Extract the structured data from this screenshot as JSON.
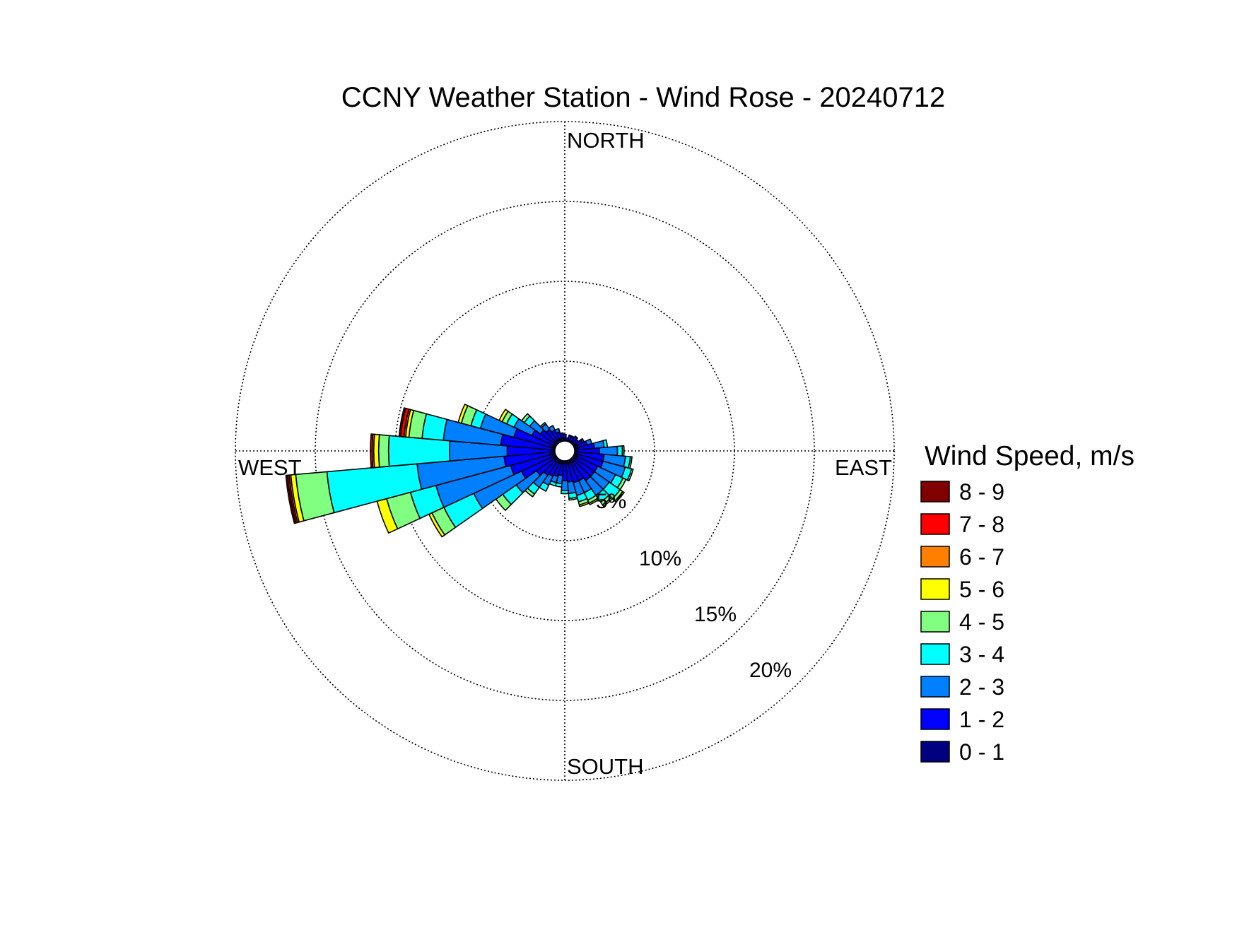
{
  "chart_data": {
    "type": "wind-rose",
    "title": "CCNY Weather Station - Wind Rose - 20240712",
    "direction_labels": {
      "north": "NORTH",
      "east": "EAST",
      "south": "SOUTH",
      "west": "WEST"
    },
    "ring_values": [
      5,
      10,
      15,
      20
    ],
    "ring_labels": [
      "5%",
      "10%",
      "15%",
      "20%"
    ],
    "rmax": 20,
    "legend_title": "Wind Speed, m/s",
    "bins": [
      {
        "label": "0 - 1",
        "color": "#000080"
      },
      {
        "label": "1 - 2",
        "color": "#0000FF"
      },
      {
        "label": "2 - 3",
        "color": "#0080FF"
      },
      {
        "label": "3 - 4",
        "color": "#00FFFF"
      },
      {
        "label": "4 - 5",
        "color": "#80FF80"
      },
      {
        "label": "5 - 6",
        "color": "#FFFF00"
      },
      {
        "label": "6 - 7",
        "color": "#FF8000"
      },
      {
        "label": "7 - 8",
        "color": "#FF0000"
      },
      {
        "label": "8 - 9",
        "color": "#800000"
      }
    ],
    "sector_width_deg": 10,
    "sectors": [
      {
        "dir": 0,
        "values": [
          0.8,
          0.2
        ]
      },
      {
        "dir": 10,
        "values": [
          0.6,
          0.2
        ]
      },
      {
        "dir": 20,
        "values": [
          0.7,
          0.3
        ]
      },
      {
        "dir": 30,
        "values": [
          0.7,
          0.3
        ]
      },
      {
        "dir": 40,
        "values": [
          0.7,
          0.4
        ]
      },
      {
        "dir": 50,
        "values": [
          0.7,
          0.3
        ]
      },
      {
        "dir": 60,
        "values": [
          0.8,
          0.4,
          0.1
        ]
      },
      {
        "dir": 70,
        "values": [
          0.8,
          0.6,
          0.3
        ]
      },
      {
        "dir": 80,
        "values": [
          0.8,
          1.0,
          0.6,
          0.2
        ]
      },
      {
        "dir": 90,
        "values": [
          0.8,
          1.3,
          1.1,
          0.3,
          0.1
        ]
      },
      {
        "dir": 100,
        "values": [
          0.8,
          1.6,
          1.3,
          0.3,
          0.1
        ]
      },
      {
        "dir": 110,
        "values": [
          0.8,
          1.6,
          1.4,
          0.4,
          0.1
        ]
      },
      {
        "dir": 120,
        "values": [
          0.8,
          1.4,
          1.2,
          0.5,
          0.2
        ]
      },
      {
        "dir": 130,
        "values": [
          0.8,
          1.4,
          1.1,
          0.8,
          0.2,
          0.1
        ]
      },
      {
        "dir": 140,
        "values": [
          0.8,
          1.4,
          1.1,
          0.5,
          0.2,
          0.1
        ]
      },
      {
        "dir": 150,
        "values": [
          0.8,
          1.2,
          0.8,
          0.5,
          0.2,
          0.1
        ]
      },
      {
        "dir": 160,
        "values": [
          0.8,
          1.2,
          0.8,
          0.4,
          0.2,
          0.1
        ]
      },
      {
        "dir": 170,
        "values": [
          0.8,
          1.1,
          0.7,
          0.3,
          0.1
        ]
      },
      {
        "dir": 180,
        "values": [
          0.8,
          1.0,
          0.6,
          0.2
        ]
      },
      {
        "dir": 190,
        "values": [
          0.8,
          0.7,
          0.5,
          0.2
        ]
      },
      {
        "dir": 200,
        "values": [
          0.8,
          0.8,
          0.4,
          0.2
        ]
      },
      {
        "dir": 210,
        "values": [
          0.8,
          0.9,
          0.6,
          0.4
        ]
      },
      {
        "dir": 220,
        "values": [
          0.8,
          1.0,
          0.9,
          0.5,
          0.2
        ]
      },
      {
        "dir": 230,
        "values": [
          0.8,
          1.3,
          1.5,
          1.0,
          0.5
        ]
      },
      {
        "dir": 240,
        "values": [
          0.8,
          2.1,
          3.2,
          2.0,
          0.8,
          0.2
        ]
      },
      {
        "dir": 250,
        "values": [
          0.8,
          2.6,
          4.7,
          1.6,
          1.5,
          0.6
        ]
      },
      {
        "dir": 260,
        "values": [
          0.8,
          2.9,
          5.3,
          5.5,
          1.9,
          0.3,
          0.1,
          0.1,
          0.1
        ]
      },
      {
        "dir": 270,
        "values": [
          0.8,
          2.7,
          3.5,
          3.7,
          0.6,
          0.3,
          0.1,
          0.1
        ]
      },
      {
        "dir": 280,
        "values": [
          0.8,
          3.1,
          3.5,
          1.3,
          0.8,
          0.2,
          0.1,
          0.2,
          0.1
        ]
      },
      {
        "dir": 290,
        "values": [
          0.8,
          2.4,
          2.1,
          0.6,
          0.6,
          0.2
        ]
      },
      {
        "dir": 300,
        "values": [
          0.8,
          1.4,
          1.2,
          0.5,
          0.3,
          0.2
        ]
      },
      {
        "dir": 310,
        "values": [
          0.8,
          1.0,
          0.8,
          0.4,
          0.2
        ]
      },
      {
        "dir": 320,
        "values": [
          0.8,
          0.8,
          0.4,
          0.1
        ]
      },
      {
        "dir": 330,
        "values": [
          0.8,
          0.6,
          0.3
        ]
      },
      {
        "dir": 340,
        "values": [
          0.8,
          0.4,
          0.2
        ]
      },
      {
        "dir": 350,
        "values": [
          0.8,
          0.3
        ]
      }
    ]
  }
}
